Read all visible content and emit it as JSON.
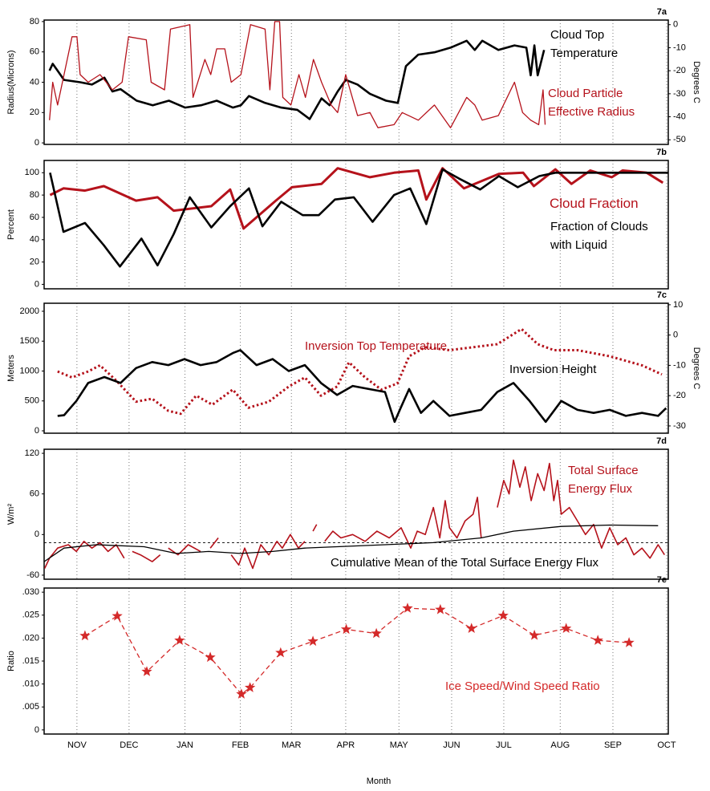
{
  "chart_data": [
    {
      "type": "line",
      "label": "7a",
      "ylabel": "Radius(Microns)",
      "y2label": "Degrees C",
      "ylim": [
        -1,
        81
      ],
      "yticks": [
        0,
        20,
        40,
        60,
        80
      ],
      "y2lim": [
        -52,
        2
      ],
      "y2ticks": [
        -50,
        -40,
        -30,
        -20,
        -10,
        0
      ],
      "series": [
        {
          "name": "Cloud Top Temperature",
          "color": "#000000",
          "axis": "y2",
          "style": "solid",
          "linewidth": 2.6,
          "x": [
            -0.51,
            -0.45,
            -0.36,
            -0.24,
            0.06,
            0.28,
            0.51,
            0.66,
            0.81,
            1.11,
            1.41,
            1.71,
            2.01,
            2.31,
            2.6,
            2.9,
            3.05,
            3.2,
            3.5,
            3.8,
            4.1,
            4.33,
            4.55,
            4.7,
            4.85,
            5.0,
            5.22,
            5.45,
            5.75,
            5.97,
            6.12,
            6.35,
            6.65,
            6.95,
            7.25,
            7.4,
            7.54,
            7.84,
            8.14,
            8.36,
            8.44,
            8.51,
            8.57,
            8.69
          ],
          "values": [
            -20,
            -17,
            -20,
            -24,
            -25,
            -26,
            -23,
            -29,
            -28,
            -33,
            -35,
            -33,
            -36,
            -35,
            -33,
            -36,
            -35,
            -31,
            -34,
            -36,
            -37,
            -41,
            -32,
            -35,
            -29,
            -24,
            -26,
            -30,
            -33,
            -34,
            -18,
            -13,
            -12,
            -10,
            -7,
            -11,
            -7,
            -11,
            -9,
            -10,
            -22,
            -9,
            -22,
            -11
          ]
        },
        {
          "name": "Cloud Particle Effective Radius",
          "color": "#b5121b",
          "style": "solid",
          "linewidth": 1.3,
          "x": [
            -0.51,
            -0.45,
            -0.36,
            -0.21,
            -0.09,
            0,
            0.06,
            0.21,
            0.43,
            0.66,
            0.84,
            0.96,
            1.29,
            1.38,
            1.63,
            1.74,
            2.1,
            2.16,
            2.38,
            2.49,
            2.6,
            2.75,
            2.87,
            3.05,
            3.23,
            3.5,
            3.59,
            3.68,
            3.77,
            3.83,
            3.98,
            4.13,
            4.25,
            4.4,
            4.55,
            4.73,
            4.85,
            5.0,
            5.22,
            5.45,
            5.6,
            5.9,
            6.05,
            6.35,
            6.65,
            6.95,
            7.1,
            7.25,
            7.4,
            7.54,
            7.84,
            8.14,
            8.29,
            8.44,
            8.59,
            8.67,
            8.71
          ],
          "values": [
            15,
            40,
            25,
            50,
            70,
            70,
            45,
            40,
            45,
            35,
            40,
            70,
            68,
            40,
            35,
            75,
            78,
            30,
            55,
            45,
            62,
            62,
            40,
            45,
            78,
            75,
            35,
            80,
            80,
            30,
            25,
            45,
            30,
            55,
            40,
            25,
            20,
            45,
            18,
            20,
            10,
            12,
            20,
            15,
            25,
            10,
            20,
            30,
            25,
            15,
            18,
            40,
            20,
            15,
            12,
            35,
            12
          ]
        }
      ]
    },
    {
      "type": "line",
      "label": "7b",
      "ylabel": "Percent",
      "ylim": [
        -4,
        111
      ],
      "yticks": [
        0,
        20,
        40,
        60,
        80,
        100
      ],
      "series": [
        {
          "name": "Cloud Fraction",
          "color": "#b5121b",
          "style": "solid",
          "linewidth": 3,
          "x": [
            -0.5,
            -0.25,
            0.15,
            0.5,
            1.1,
            1.5,
            1.8,
            2.5,
            2.85,
            3.1,
            3.7,
            4.0,
            4.55,
            4.85,
            5.45,
            5.9,
            6.35,
            6.5,
            6.8,
            7.2,
            7.85,
            8.3,
            8.5,
            8.9,
            9.2,
            9.55,
            9.95,
            10.15,
            10.6,
            10.9
          ],
          "values": [
            80,
            86,
            84,
            88,
            75,
            78,
            66,
            70,
            85,
            50,
            75,
            87,
            90,
            104,
            96,
            100,
            102,
            76,
            104,
            86,
            99,
            100,
            88,
            103,
            90,
            102,
            96,
            102,
            100,
            91
          ]
        },
        {
          "name": "Fraction of Clouds with Liquid",
          "color": "#000000",
          "style": "solid",
          "linewidth": 2.6,
          "x": [
            -0.5,
            -0.25,
            0.15,
            0.5,
            0.8,
            1.2,
            1.5,
            1.8,
            2.1,
            2.5,
            2.85,
            3.2,
            3.45,
            3.8,
            4.2,
            4.5,
            4.8,
            5.15,
            5.5,
            5.9,
            6.2,
            6.5,
            6.8,
            7.1,
            7.5,
            7.85,
            8.2,
            8.6,
            8.9,
            11.0
          ],
          "values": [
            100,
            47,
            55,
            35,
            16,
            41,
            17,
            45,
            78,
            51,
            70,
            86,
            52,
            74,
            62,
            62,
            76,
            78,
            56,
            80,
            86,
            54,
            103,
            95,
            85,
            97,
            87,
            97,
            100,
            100
          ]
        }
      ]
    },
    {
      "type": "line",
      "label": "7c",
      "ylabel": "Meters",
      "y2label": "Degrees C",
      "ylim": [
        -40,
        2134
      ],
      "yticks": [
        0,
        500,
        1000,
        1500,
        2000
      ],
      "y2lim": [
        -32.4,
        10.5
      ],
      "y2ticks": [
        -30,
        -20,
        -10,
        0,
        10
      ],
      "series": [
        {
          "name": "Inversion Top Temperature",
          "color": "#b5121b",
          "axis": "y2",
          "style": "dotted",
          "linewidth": 3,
          "x": [
            -0.36,
            -0.09,
            0.21,
            0.43,
            0.73,
            1.1,
            1.4,
            1.7,
            1.93,
            2.22,
            2.52,
            2.9,
            3.19,
            3.57,
            3.94,
            4.24,
            4.54,
            4.84,
            5.06,
            5.36,
            5.66,
            5.96,
            6.18,
            6.48,
            6.93,
            7.37,
            7.82,
            8.27,
            8.57,
            8.87,
            9.31,
            9.91,
            10.51,
            10.88
          ],
          "values": [
            -12,
            -14,
            -12,
            -10,
            -15,
            -22,
            -21,
            -25,
            -26,
            -20,
            -23,
            -18,
            -24,
            -22,
            -17,
            -14,
            -20,
            -17,
            -9,
            -14,
            -18,
            -16,
            -7,
            -4,
            -5,
            -4,
            -3,
            2,
            -3,
            -5,
            -5,
            -7,
            -10,
            -13
          ]
        },
        {
          "name": "Inversion Height",
          "color": "#000000",
          "style": "solid",
          "linewidth": 2.6,
          "x": [
            -0.36,
            -0.24,
            -0.01,
            0.21,
            0.51,
            0.81,
            1.1,
            1.4,
            1.7,
            2.0,
            2.3,
            2.6,
            2.9,
            3.04,
            3.34,
            3.64,
            3.94,
            4.24,
            4.54,
            4.84,
            5.13,
            5.43,
            5.73,
            5.91,
            6.03,
            6.18,
            6.4,
            6.63,
            6.93,
            7.22,
            7.52,
            7.82,
            8.12,
            8.42,
            8.72,
            9.01,
            9.31,
            9.61,
            9.91,
            10.21,
            10.51,
            10.81,
            10.96
          ],
          "values": [
            250,
            260,
            500,
            800,
            900,
            800,
            1050,
            1150,
            1100,
            1200,
            1100,
            1150,
            1300,
            1350,
            1100,
            1200,
            1000,
            1100,
            800,
            600,
            750,
            700,
            650,
            150,
            400,
            700,
            300,
            500,
            250,
            300,
            350,
            650,
            800,
            500,
            150,
            500,
            350,
            300,
            350,
            250,
            300,
            250,
            380
          ]
        }
      ]
    },
    {
      "type": "line",
      "label": "7d",
      "ylabel": "W/m²",
      "ylim": [
        -66,
        126
      ],
      "yticks": [
        -60,
        0,
        60,
        120
      ],
      "reference_line": -12,
      "series": [
        {
          "name": "Total Surface Energy Flux",
          "color": "#b5121b",
          "style": "solid",
          "linewidth": 1.6,
          "x": [
            -0.6,
            -0.51,
            -0.36,
            -0.16,
            -0.01,
            0.13,
            0.28,
            0.43,
            0.58,
            0.73,
            0.88,
            0.96,
            1.03,
            1.18,
            1.4,
            1.55,
            1.63,
            1.7,
            1.88,
            2.07,
            2.3,
            2.39,
            2.48,
            2.63,
            2.75,
            2.87,
            3.01,
            3.12,
            3.27,
            3.42,
            3.57,
            3.72,
            3.82,
            3.97,
            4.12,
            4.24,
            4.31,
            4.39,
            4.46,
            4.54,
            4.61,
            4.76,
            4.91,
            5.13,
            5.36,
            5.58,
            5.81,
            6.03,
            6.21,
            6.33,
            6.48,
            6.63,
            6.75,
            6.85,
            6.93,
            7.07,
            7.22,
            7.37,
            7.45,
            7.52,
            7.67,
            7.82,
            7.94,
            8.04,
            8.12,
            8.24,
            8.34,
            8.45,
            8.57,
            8.69,
            8.79,
            8.87,
            8.94,
            9.01,
            9.16,
            9.31,
            9.46,
            9.61,
            9.76,
            9.91,
            10.06,
            10.21,
            10.36,
            10.51,
            10.66,
            10.81,
            10.93
          ],
          "values": [
            -50,
            -35,
            -20,
            -15,
            -25,
            -10,
            -20,
            -12,
            -25,
            -15,
            -35,
            null,
            -25,
            -30,
            -40,
            -30,
            null,
            -20,
            -30,
            -15,
            -25,
            null,
            -20,
            -5,
            null,
            -30,
            -45,
            -20,
            -50,
            -15,
            -30,
            -10,
            -20,
            0,
            -20,
            -10,
            null,
            5,
            15,
            null,
            -10,
            5,
            -5,
            0,
            -10,
            5,
            -5,
            10,
            -20,
            5,
            0,
            40,
            -5,
            50,
            10,
            -5,
            20,
            30,
            55,
            -5,
            null,
            40,
            80,
            60,
            110,
            70,
            100,
            50,
            90,
            65,
            105,
            50,
            80,
            30,
            40,
            20,
            0,
            15,
            -20,
            10,
            -15,
            -5,
            -30,
            -20,
            -35,
            -15,
            -30
          ]
        },
        {
          "name": "Cumulative Mean of the Total Surface Energy Flux",
          "color": "#000000",
          "style": "solid",
          "linewidth": 1.3,
          "x": [
            -0.61,
            -0.24,
            0.36,
            1.25,
            1.85,
            2.45,
            3.04,
            3.64,
            4.24,
            4.84,
            5.73,
            6.63,
            7.52,
            8.12,
            9.01,
            9.91,
            10.81
          ],
          "values": [
            -40,
            -20,
            -15,
            -18,
            -28,
            -25,
            -28,
            -25,
            -20,
            -18,
            -15,
            -12,
            -5,
            5,
            12,
            14,
            13
          ]
        }
      ]
    },
    {
      "type": "line",
      "label": "7e",
      "ylabel": "Ratio",
      "xlabel": "Month",
      "ylim": [
        -0.0009,
        0.0309
      ],
      "yticks": [
        0,
        {
          "value": 0.005,
          "label": ".005"
        },
        {
          "value": 0.01,
          "label": ".010"
        },
        {
          "value": 0.015,
          "label": ".015"
        },
        {
          "value": 0.02,
          "label": ".020"
        },
        {
          "value": 0.025,
          "label": ".025"
        },
        {
          "value": 0.03,
          "label": ".030"
        }
      ],
      "xlim": [
        -0.61,
        11.0
      ],
      "xgrid": true,
      "xticks": [
        {
          "value": 0,
          "label": "NOV"
        },
        {
          "value": 0.97,
          "label": "DEC"
        },
        {
          "value": 2.01,
          "label": "JAN"
        },
        {
          "value": 3.04,
          "label": "FEB"
        },
        {
          "value": 3.99,
          "label": "MAR"
        },
        {
          "value": 5.0,
          "label": "APR"
        },
        {
          "value": 5.99,
          "label": "MAY"
        },
        {
          "value": 6.97,
          "label": "JUN"
        },
        {
          "value": 7.94,
          "label": "JUL"
        },
        {
          "value": 8.99,
          "label": "AUG"
        },
        {
          "value": 9.97,
          "label": "SEP"
        },
        {
          "value": 10.97,
          "label": "OCT"
        }
      ],
      "series": [
        {
          "name": "Ice Speed/Wind Speed Ratio",
          "color": "#d42a2a",
          "style": "dashed",
          "linewidth": 1.3,
          "marker": "star",
          "x": [
            0.15,
            0.75,
            1.3,
            1.91,
            2.48,
            3.06,
            3.22,
            3.79,
            4.39,
            5.01,
            5.57,
            6.15,
            6.76,
            7.34,
            7.93,
            8.51,
            9.1,
            9.69,
            10.27
          ],
          "values": [
            0.0205,
            0.0248,
            0.0127,
            0.0195,
            0.0158,
            0.0078,
            0.0092,
            0.0168,
            0.0193,
            0.0219,
            0.021,
            0.0265,
            0.0262,
            0.0221,
            0.0249,
            0.0206,
            0.0221,
            0.0195,
            0.019
          ]
        }
      ]
    }
  ]
}
